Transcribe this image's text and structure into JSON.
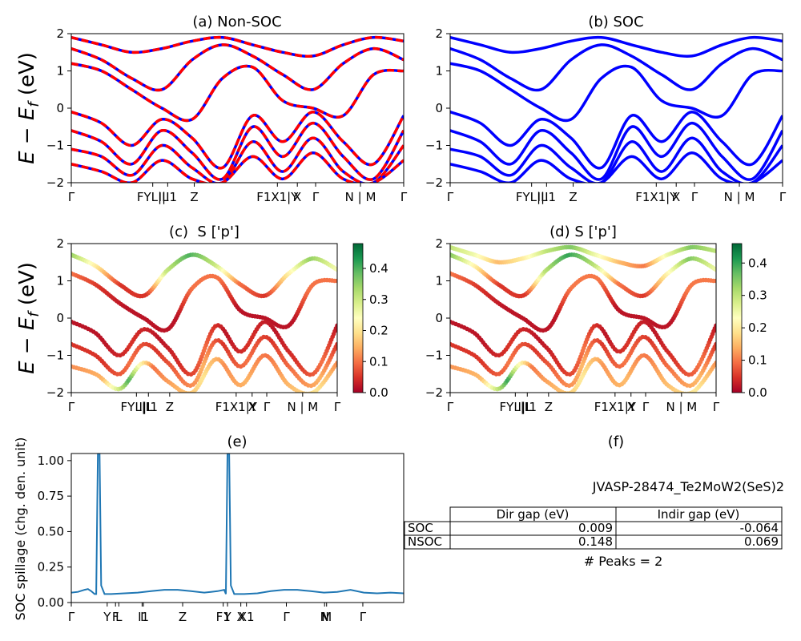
{
  "figure": {
    "ylabel_band": "E − E",
    "ylabel_band_sub": "f",
    "ylabel_band_unit": " (eV)",
    "ylabel_spillage": "SOC spillage (chg. den. unit)"
  },
  "kpath": {
    "bands": [
      "Γ",
      "FYL|L",
      "I|I1",
      "Z",
      "F1X1|Y",
      "X",
      "Γ",
      "N | M",
      "Γ"
    ],
    "spillage": [
      "Γ",
      "Y",
      "F",
      "L",
      "I",
      "I1",
      "Z",
      "F1",
      "Y",
      "X",
      "X1",
      "Γ",
      "N",
      "M",
      "Γ"
    ]
  },
  "colorbar": {
    "c": {
      "ticks": [
        "0.0",
        "0.1",
        "0.2",
        "0.3",
        "0.4"
      ],
      "max": 0.48
    },
    "d": {
      "ticks": [
        "0.0",
        "0.1",
        "0.2",
        "0.3",
        "0.4"
      ],
      "max": 0.46
    },
    "colors": [
      "#a50026",
      "#d73027",
      "#f46d43",
      "#fdae61",
      "#fee08b",
      "#ffffbf",
      "#d9ef8b",
      "#a6d96a",
      "#66bd63",
      "#1a9850",
      "#006837"
    ]
  },
  "colors": {
    "nsoc_band": "#ff0000",
    "soc_band": "#0000ff",
    "spillage_line": "#1f77b4"
  },
  "table": {
    "material": "JVASP-28474_Te2MoW2(SeS)2",
    "headers": [
      "Dir gap (eV)",
      "Indir gap (eV)"
    ],
    "rows": [
      {
        "label": "SOC",
        "dir": "0.009",
        "indir": "-0.064"
      },
      {
        "label": "NSOC",
        "dir": "0.148",
        "indir": "0.069"
      }
    ],
    "peaks": "# Peaks = 2"
  },
  "chart_data": [
    {
      "type": "line",
      "title": "(a) Non-SOC",
      "ylim": [
        -2,
        2
      ],
      "yticks": [
        "−2",
        "−1",
        "0",
        "1",
        "2"
      ],
      "series": [
        {
          "values": [
            1.6,
            1.3,
            0.8,
            0.5,
            1.3,
            1.7,
            1.4,
            0.9,
            0.5,
            1.2,
            1.6,
            1.3
          ]
        },
        {
          "values": [
            1.9,
            1.7,
            1.5,
            1.6,
            1.8,
            1.9,
            1.7,
            1.5,
            1.4,
            1.7,
            1.9,
            1.8
          ]
        },
        {
          "values": [
            1.2,
            1.0,
            0.5,
            0.0,
            -0.3,
            0.8,
            1.1,
            0.2,
            0.0,
            -0.2,
            0.9,
            1.0
          ]
        },
        {
          "values": [
            -0.1,
            -0.4,
            -1.0,
            -0.3,
            -0.8,
            -1.6,
            -0.2,
            -0.9,
            -0.1,
            -0.9,
            -1.5,
            -0.2
          ]
        },
        {
          "values": [
            -0.6,
            -0.9,
            -1.5,
            -0.6,
            -1.2,
            -1.9,
            -0.5,
            -1.3,
            -0.4,
            -1.3,
            -1.9,
            -0.6
          ]
        },
        {
          "values": [
            -1.1,
            -1.3,
            -1.8,
            -1.0,
            -1.6,
            -2.0,
            -0.9,
            -1.7,
            -0.8,
            -1.7,
            -2.0,
            -1.0
          ]
        },
        {
          "values": [
            -1.5,
            -1.7,
            -2.0,
            -1.4,
            -1.9,
            -2.0,
            -1.3,
            -1.9,
            -1.2,
            -1.9,
            -2.0,
            -1.4
          ]
        }
      ]
    },
    {
      "type": "line",
      "title": "(b) SOC",
      "ylim": [
        -2,
        2
      ],
      "yticks": [
        "−2",
        "−1",
        "0",
        "1",
        "2"
      ],
      "series": [
        {
          "values": [
            1.6,
            1.3,
            0.8,
            0.5,
            1.3,
            1.7,
            1.4,
            0.9,
            0.5,
            1.2,
            1.6,
            1.3
          ]
        },
        {
          "values": [
            1.9,
            1.7,
            1.5,
            1.6,
            1.8,
            1.9,
            1.7,
            1.5,
            1.4,
            1.7,
            1.9,
            1.8
          ]
        },
        {
          "values": [
            1.2,
            1.0,
            0.5,
            0.0,
            -0.3,
            0.8,
            1.1,
            0.2,
            0.0,
            -0.2,
            0.9,
            1.0
          ]
        },
        {
          "values": [
            -0.1,
            -0.4,
            -1.0,
            -0.3,
            -0.8,
            -1.6,
            -0.2,
            -0.9,
            -0.1,
            -0.9,
            -1.5,
            -0.2
          ]
        },
        {
          "values": [
            -0.6,
            -0.9,
            -1.5,
            -0.6,
            -1.2,
            -1.9,
            -0.5,
            -1.3,
            -0.4,
            -1.3,
            -1.9,
            -0.6
          ]
        },
        {
          "values": [
            -1.1,
            -1.3,
            -1.8,
            -1.0,
            -1.6,
            -2.0,
            -0.9,
            -1.7,
            -0.8,
            -1.7,
            -2.0,
            -1.0
          ]
        },
        {
          "values": [
            -1.5,
            -1.7,
            -2.0,
            -1.4,
            -1.9,
            -2.0,
            -1.3,
            -1.9,
            -1.2,
            -1.9,
            -2.0,
            -1.4
          ]
        }
      ]
    },
    {
      "type": "scatter",
      "title": "(c)  S ['p']",
      "ylim": [
        -2,
        2
      ],
      "yticks": [
        "−2",
        "−1",
        "0",
        "1",
        "2"
      ],
      "series": [
        {
          "values": [
            1.7,
            1.4,
            0.9,
            0.6,
            1.3,
            1.7,
            1.4,
            0.9,
            0.6,
            1.2,
            1.6,
            1.3
          ],
          "weights": [
            0.35,
            0.2,
            0.05,
            0.05,
            0.3,
            0.4,
            0.3,
            0.1,
            0.05,
            0.2,
            0.35,
            0.25
          ]
        },
        {
          "values": [
            1.2,
            0.9,
            0.4,
            0.0,
            -0.3,
            0.8,
            1.1,
            0.2,
            0.0,
            -0.2,
            0.9,
            1.0
          ],
          "weights": [
            0.1,
            0.05,
            0.02,
            0.02,
            0.02,
            0.1,
            0.1,
            0.02,
            0.02,
            0.02,
            0.1,
            0.1
          ]
        },
        {
          "values": [
            -0.1,
            -0.4,
            -1.0,
            -0.3,
            -0.8,
            -1.5,
            -0.2,
            -0.9,
            -0.1,
            -0.9,
            -1.5,
            -0.2
          ],
          "weights": [
            0.02,
            0.02,
            0.05,
            0.02,
            0.05,
            0.1,
            0.02,
            0.05,
            0.02,
            0.05,
            0.1,
            0.02
          ]
        },
        {
          "values": [
            -0.7,
            -1.0,
            -1.5,
            -0.7,
            -1.2,
            -1.8,
            -0.6,
            -1.3,
            -0.5,
            -1.3,
            -1.8,
            -0.7
          ],
          "weights": [
            0.05,
            0.05,
            0.1,
            0.05,
            0.1,
            0.15,
            0.05,
            0.1,
            0.05,
            0.1,
            0.15,
            0.05
          ]
        },
        {
          "values": [
            -1.3,
            -1.5,
            -1.9,
            -1.2,
            -1.7,
            -2.0,
            -1.1,
            -1.8,
            -1.0,
            -1.8,
            -2.0,
            -1.2
          ],
          "weights": [
            0.12,
            0.15,
            0.4,
            0.1,
            0.15,
            0.2,
            0.12,
            0.15,
            0.1,
            0.15,
            0.2,
            0.12
          ]
        }
      ]
    },
    {
      "type": "scatter",
      "title": "(d) S ['p']",
      "ylim": [
        -2,
        2
      ],
      "yticks": [
        "−2",
        "−1",
        "0",
        "1",
        "2"
      ],
      "series": [
        {
          "values": [
            1.7,
            1.4,
            0.9,
            0.6,
            1.3,
            1.7,
            1.4,
            0.9,
            0.6,
            1.2,
            1.6,
            1.3
          ],
          "weights": [
            0.35,
            0.2,
            0.05,
            0.05,
            0.3,
            0.4,
            0.3,
            0.1,
            0.05,
            0.2,
            0.35,
            0.25
          ]
        },
        {
          "values": [
            1.9,
            1.7,
            1.5,
            1.6,
            1.8,
            1.9,
            1.7,
            1.5,
            1.4,
            1.7,
            1.9,
            1.8
          ],
          "weights": [
            0.3,
            0.25,
            0.15,
            0.2,
            0.3,
            0.35,
            0.25,
            0.15,
            0.1,
            0.25,
            0.35,
            0.3
          ]
        },
        {
          "values": [
            1.2,
            0.9,
            0.4,
            0.0,
            -0.3,
            0.8,
            1.1,
            0.2,
            0.0,
            -0.2,
            0.9,
            1.0
          ],
          "weights": [
            0.1,
            0.05,
            0.02,
            0.02,
            0.02,
            0.1,
            0.1,
            0.02,
            0.02,
            0.02,
            0.1,
            0.1
          ]
        },
        {
          "values": [
            -0.1,
            -0.4,
            -1.0,
            -0.3,
            -0.8,
            -1.5,
            -0.2,
            -0.9,
            -0.1,
            -0.9,
            -1.5,
            -0.2
          ],
          "weights": [
            0.02,
            0.02,
            0.05,
            0.02,
            0.05,
            0.1,
            0.02,
            0.05,
            0.02,
            0.05,
            0.1,
            0.02
          ]
        },
        {
          "values": [
            -0.7,
            -1.0,
            -1.5,
            -0.7,
            -1.2,
            -1.8,
            -0.6,
            -1.3,
            -0.5,
            -1.3,
            -1.8,
            -0.7
          ],
          "weights": [
            0.05,
            0.05,
            0.1,
            0.05,
            0.1,
            0.15,
            0.05,
            0.1,
            0.05,
            0.1,
            0.15,
            0.05
          ]
        },
        {
          "values": [
            -1.3,
            -1.5,
            -1.9,
            -1.2,
            -1.7,
            -2.0,
            -1.1,
            -1.8,
            -1.0,
            -1.8,
            -2.0,
            -1.2
          ],
          "weights": [
            0.12,
            0.15,
            0.4,
            0.1,
            0.15,
            0.2,
            0.12,
            0.15,
            0.1,
            0.15,
            0.2,
            0.12
          ]
        }
      ]
    },
    {
      "type": "line",
      "title": "(e)",
      "xlim": [
        0,
        100
      ],
      "ylim": [
        0,
        1.05
      ],
      "yticks": [
        "0.00",
        "0.25",
        "0.50",
        "0.75",
        "1.00"
      ],
      "ytick_values": [
        0,
        0.25,
        0.5,
        0.75,
        1.0
      ],
      "x": [
        0,
        2,
        4,
        5,
        6,
        7,
        7.5,
        8,
        8.5,
        9,
        10,
        12,
        16,
        20,
        24,
        28,
        32,
        36,
        40,
        42,
        44,
        46,
        46.5,
        47,
        47.5,
        48,
        49,
        52,
        56,
        60,
        64,
        68,
        72,
        76,
        80,
        84,
        88,
        92,
        96,
        100
      ],
      "values": [
        0.07,
        0.075,
        0.09,
        0.095,
        0.08,
        0.06,
        0.06,
        1.05,
        1.05,
        0.12,
        0.06,
        0.06,
        0.065,
        0.07,
        0.08,
        0.09,
        0.09,
        0.08,
        0.07,
        0.075,
        0.08,
        0.09,
        0.06,
        1.05,
        1.05,
        0.12,
        0.06,
        0.06,
        0.065,
        0.08,
        0.09,
        0.09,
        0.08,
        0.07,
        0.075,
        0.09,
        0.07,
        0.065,
        0.07,
        0.065
      ]
    }
  ]
}
